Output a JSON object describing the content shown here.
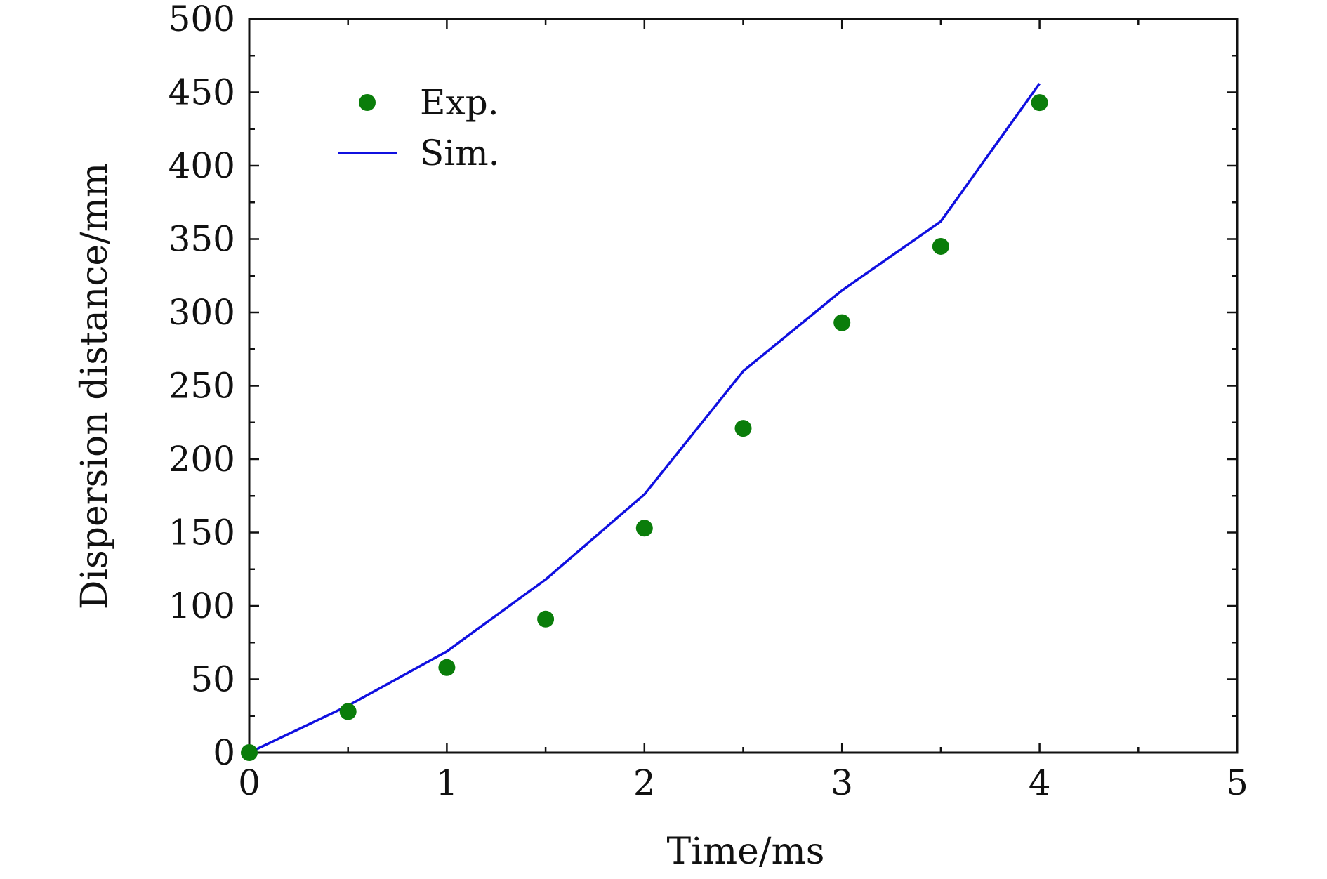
{
  "chart_data": {
    "type": "line",
    "title": "",
    "xlabel": "Time/ms",
    "ylabel": "Dispersion distance/mm",
    "xlim": [
      0,
      5
    ],
    "ylim": [
      0,
      500
    ],
    "xticks": [
      "0",
      "1",
      "2",
      "3",
      "4",
      "5"
    ],
    "yticks": [
      "0",
      "50",
      "100",
      "150",
      "200",
      "250",
      "300",
      "350",
      "400",
      "450",
      "500"
    ],
    "grid": false,
    "legend_position": "top-left",
    "series": [
      {
        "name": "Exp.",
        "kind": "scatter",
        "color": "#0a7d0a",
        "x": [
          0,
          0.5,
          1,
          1.5,
          2,
          2.5,
          3,
          3.5,
          4
        ],
        "y": [
          0,
          28,
          58,
          91,
          153,
          221,
          293,
          345,
          443
        ]
      },
      {
        "name": "Sim.",
        "kind": "line",
        "color": "#1010e0",
        "x": [
          0,
          0.5,
          1,
          1.5,
          2,
          2.5,
          3,
          3.5,
          4
        ],
        "y": [
          0,
          32,
          69,
          118,
          176,
          260,
          315,
          362,
          456
        ]
      }
    ]
  }
}
